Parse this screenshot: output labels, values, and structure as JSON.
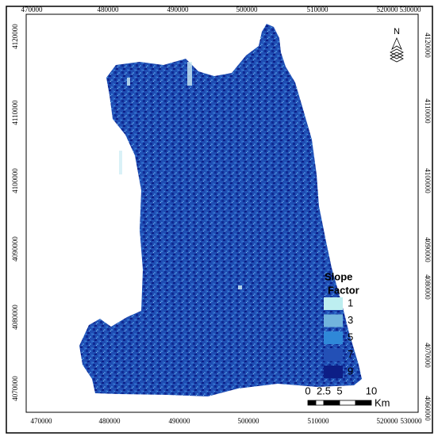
{
  "axes": {
    "top": [
      "470000",
      "480000",
      "490000",
      "500000",
      "510000",
      "520000",
      "530000"
    ],
    "bottom": [
      "470000",
      "480000",
      "490000",
      "500000",
      "510000",
      "520000",
      "530000"
    ],
    "left": [
      "4120000",
      "4110000",
      "4100000",
      "4090000",
      "4080000",
      "4070000"
    ],
    "right": [
      "4120000",
      "4110000",
      "4100000",
      "4090000",
      "4080000",
      "4070000",
      "4060000"
    ]
  },
  "north": "N",
  "legend": {
    "title": [
      "Slope",
      "Factor"
    ],
    "items": [
      {
        "label": "1",
        "color": "#bdeef0"
      },
      {
        "label": "3",
        "color": "#72b4dd"
      },
      {
        "label": "5",
        "color": "#2f88d8"
      },
      {
        "label": "7",
        "color": "#2350b6"
      },
      {
        "label": "9",
        "color": "#0d1e86"
      }
    ]
  },
  "scale_bar": {
    "labels": [
      "0",
      "2.5",
      "5",
      "10"
    ],
    "unit": "Km"
  }
}
